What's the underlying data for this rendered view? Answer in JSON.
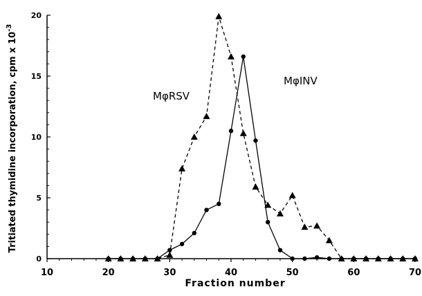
{
  "chart_data": {
    "type": "line",
    "title": "",
    "xlabel": "Fraction number",
    "ylabel": "Tritiated thymidine incorporation, cpm x 10",
    "ylabel_superscript": "-3",
    "xlim": [
      10,
      70
    ],
    "ylim": [
      0,
      20
    ],
    "x_ticks": [
      "10",
      "20",
      "30",
      "40",
      "50",
      "60",
      "70"
    ],
    "y_ticks": [
      "0",
      "5",
      "10",
      "15",
      "20"
    ],
    "grid": false,
    "legend": "none",
    "series": [
      {
        "name": "MφRSV",
        "line_style": "dashed",
        "marker": "triangle",
        "x": [
          20,
          22,
          24,
          26,
          28,
          30,
          32,
          34,
          36,
          38,
          40,
          42,
          44,
          46,
          48,
          50,
          52,
          54,
          56,
          58,
          60,
          62,
          64,
          66,
          68,
          70
        ],
        "y": [
          0,
          0,
          0,
          0,
          0,
          0.3,
          7.4,
          10.0,
          11.7,
          19.9,
          16.6,
          10.3,
          5.9,
          4.4,
          3.7,
          5.2,
          2.6,
          2.7,
          1.5,
          0,
          0,
          0,
          0,
          0,
          0,
          0
        ]
      },
      {
        "name": "MφINV",
        "line_style": "solid",
        "marker": "circle",
        "x": [
          20,
          22,
          24,
          26,
          28,
          30,
          32,
          34,
          36,
          38,
          40,
          42,
          44,
          46,
          48,
          50,
          52,
          54,
          56,
          58,
          60,
          62,
          64,
          66,
          68,
          70
        ],
        "y": [
          0,
          0,
          0,
          0,
          0,
          0.7,
          1.2,
          2.1,
          4.0,
          4.5,
          10.5,
          16.6,
          9.7,
          3.0,
          0.7,
          0,
          0,
          0.1,
          0,
          0,
          0,
          0,
          0,
          0,
          0,
          0
        ]
      }
    ],
    "annotations": [
      {
        "text": "MφRSV",
        "series": "MφRSV"
      },
      {
        "text": "MφINV",
        "series": "MφINV"
      }
    ]
  }
}
